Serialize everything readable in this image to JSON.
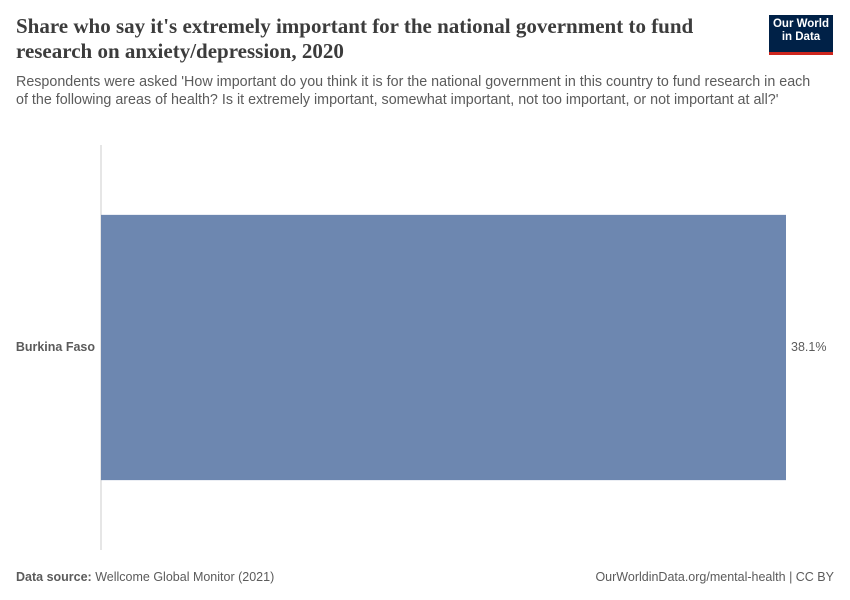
{
  "chart_data": {
    "type": "bar",
    "orientation": "horizontal",
    "title": "Share who say it's extremely important for the national government to fund research on anxiety/depression, 2020",
    "subtitle": "Respondents were asked 'How important do you think it is for the national government in this country to fund research in each of the following areas of health? Is it extremely important, somewhat important, not too important, or not important at all?'",
    "categories": [
      "Burkina Faso"
    ],
    "values": [
      38.1
    ],
    "value_labels": [
      "38.1%"
    ],
    "color": "#6d87b0",
    "logo": [
      "Our World",
      "in Data"
    ],
    "source_label": "Data source:",
    "source": "Wellcome Global Monitor (2021)",
    "footer_right": "OurWorldinData.org/mental-health | CC BY"
  }
}
